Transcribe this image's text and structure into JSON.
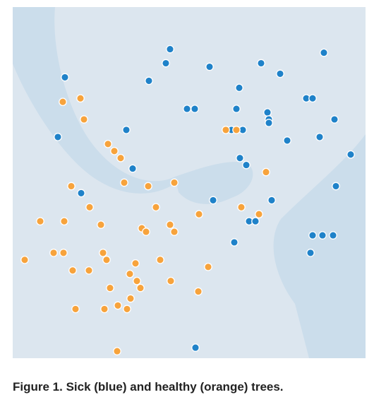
{
  "chart_data": {
    "type": "scatter",
    "caption": "Figure 1. Sick (blue) and healthy (orange) trees.",
    "xlim": [
      0,
      100
    ],
    "ylim": [
      0,
      100
    ],
    "grid": false,
    "colors": {
      "sick": "#1f82c9",
      "healthy": "#f7a33c",
      "background": "#dce6ef",
      "region": "#c6d9ea"
    },
    "series": [
      {
        "key": "sick",
        "x": [
          44.6,
          43.4,
          55.8,
          70.4,
          88.2,
          75.8,
          14.8,
          38.6,
          64.2,
          83.2,
          85.0,
          49.4,
          51.6,
          63.4,
          72.2,
          72.6,
          72.6,
          91.2,
          32.2,
          60.4,
          62.0,
          65.2,
          12.8,
          77.8,
          87.0,
          95.8,
          64.4,
          66.2,
          19.4,
          34.0,
          56.8,
          91.6,
          73.4,
          67.0,
          68.8,
          87.8,
          85.0,
          90.8,
          62.8,
          84.4,
          51.8
        ],
        "y": [
          88.0,
          84.0,
          83.0,
          84.0,
          87.0,
          81.0,
          80.0,
          79.0,
          77.0,
          74.0,
          74.0,
          71.0,
          71.0,
          71.0,
          70.0,
          68.0,
          67.0,
          68.0,
          65.0,
          65.0,
          65.0,
          65.0,
          63.0,
          62.0,
          63.0,
          58.0,
          57.0,
          55.0,
          47.0,
          54.0,
          45.0,
          49.0,
          45.0,
          39.0,
          39.0,
          35.0,
          35.0,
          35.0,
          33.0,
          30.0,
          3.0
        ]
      },
      {
        "key": "healthy",
        "x": [
          14.2,
          19.2,
          20.2,
          60.4,
          63.4,
          27.0,
          28.8,
          30.6,
          71.8,
          16.6,
          31.6,
          38.4,
          45.8,
          21.8,
          40.6,
          52.8,
          64.8,
          69.8,
          7.8,
          14.6,
          25.0,
          36.6,
          37.8,
          44.6,
          45.8,
          11.6,
          14.4,
          25.6,
          26.6,
          41.8,
          3.4,
          17.0,
          21.6,
          34.8,
          55.4,
          33.2,
          35.2,
          27.6,
          44.8,
          36.2,
          52.6,
          33.4,
          29.8,
          26.0,
          17.8,
          32.4,
          29.6
        ],
        "y": [
          73.0,
          74.0,
          68.0,
          65.0,
          65.0,
          61.0,
          59.0,
          57.0,
          53.0,
          49.0,
          50.0,
          49.0,
          50.0,
          43.0,
          43.0,
          41.0,
          43.0,
          41.0,
          39.0,
          39.0,
          38.0,
          37.0,
          36.0,
          38.0,
          36.0,
          30.0,
          30.0,
          30.0,
          28.0,
          28.0,
          28.0,
          25.0,
          25.0,
          27.0,
          26.0,
          24.0,
          22.0,
          20.0,
          22.0,
          20.0,
          19.0,
          17.0,
          15.0,
          14.0,
          14.0,
          14.0,
          2.0
        ]
      }
    ]
  }
}
